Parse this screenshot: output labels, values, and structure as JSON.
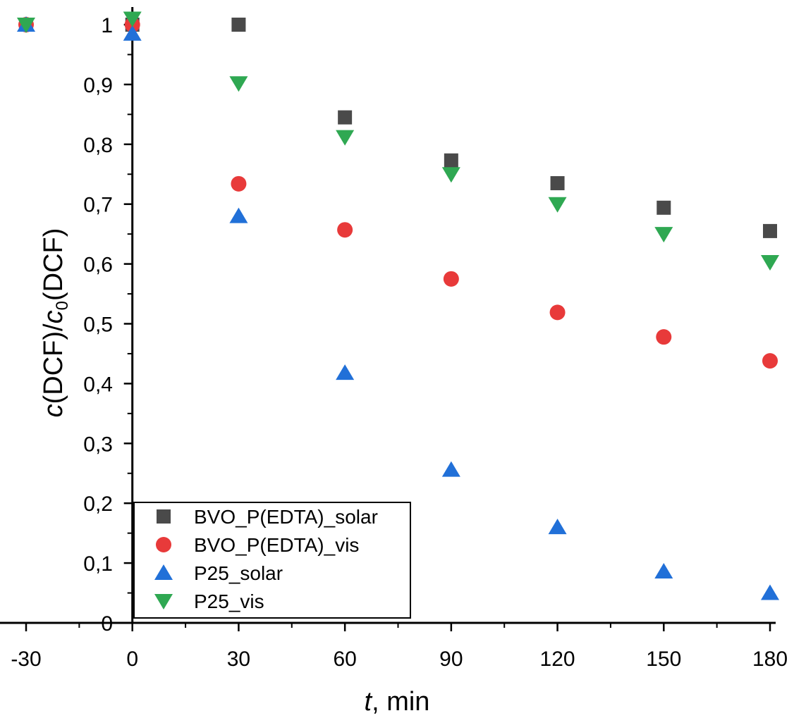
{
  "chart_data": {
    "type": "scatter",
    "title": "",
    "xlabel": {
      "italic": "t",
      "rest": ", min"
    },
    "ylabel": {
      "italic_c": "c",
      "dcf": "(DCF)/",
      "italic_c0": "c",
      "sub0": "0",
      "dcf2": "(DCF)"
    },
    "x_ticks": [
      -30,
      0,
      30,
      60,
      90,
      120,
      150,
      180
    ],
    "x_tick_labels": [
      "-30",
      "0",
      "30",
      "60",
      "90",
      "120",
      "150",
      "180"
    ],
    "y_ticks": [
      0,
      0.1,
      0.2,
      0.3,
      0.4,
      0.5,
      0.6,
      0.7,
      0.8,
      0.9,
      1.0
    ],
    "y_tick_labels": [
      "0",
      "0,1",
      "0,2",
      "0,3",
      "0,4",
      "0,5",
      "0,6",
      "0,7",
      "0,8",
      "0,9",
      "1"
    ],
    "xlim": [
      -30,
      180
    ],
    "ylim": [
      0,
      1.0
    ],
    "grid": false,
    "legend_position": "bottom-left",
    "series": [
      {
        "name": "BVO_P(EDTA)_solar",
        "marker": "square",
        "color": "#4a4a4a",
        "x": [
          -30,
          0,
          30,
          60,
          90,
          120,
          150,
          180
        ],
        "y": [
          1.0,
          1.0,
          1.0,
          0.845,
          0.773,
          0.735,
          0.694,
          0.655
        ]
      },
      {
        "name": "BVO_P(EDTA)_vis",
        "marker": "circle",
        "color": "#e83a3a",
        "x": [
          -30,
          0,
          30,
          60,
          90,
          120,
          150,
          180
        ],
        "y": [
          1.0,
          1.0,
          0.734,
          0.657,
          0.575,
          0.519,
          0.478,
          0.438
        ]
      },
      {
        "name": "P25_solar",
        "marker": "triangle-up",
        "color": "#2170d8",
        "x": [
          -30,
          0,
          30,
          60,
          90,
          120,
          150,
          180
        ],
        "y": [
          1.0,
          0.985,
          0.68,
          0.418,
          0.256,
          0.16,
          0.086,
          0.05
        ]
      },
      {
        "name": "P25_vis",
        "marker": "triangle-down",
        "color": "#2fa852",
        "x": [
          -30,
          0,
          30,
          60,
          90,
          120,
          150,
          180
        ],
        "y": [
          1.0,
          1.01,
          0.902,
          0.812,
          0.75,
          0.7,
          0.65,
          0.603
        ]
      }
    ]
  }
}
